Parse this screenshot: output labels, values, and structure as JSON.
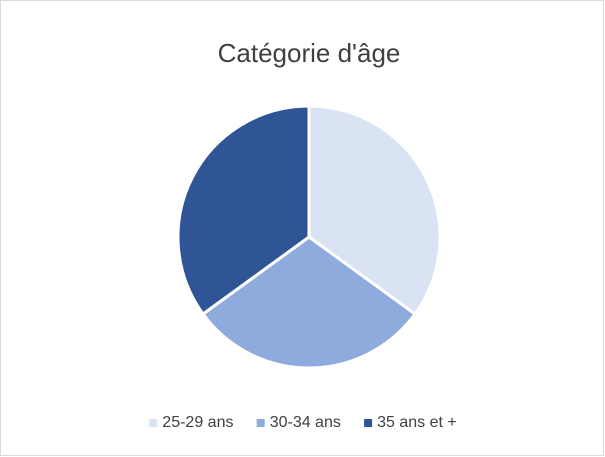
{
  "chart_data": {
    "type": "pie",
    "title": "Catégorie d'âge",
    "categories": [
      "25-29 ans",
      "30-34 ans",
      "35 ans et +"
    ],
    "values": [
      35,
      30,
      35
    ],
    "colors": [
      "#dae3f3",
      "#8faadc",
      "#2f5597"
    ],
    "legend": "bottom"
  }
}
